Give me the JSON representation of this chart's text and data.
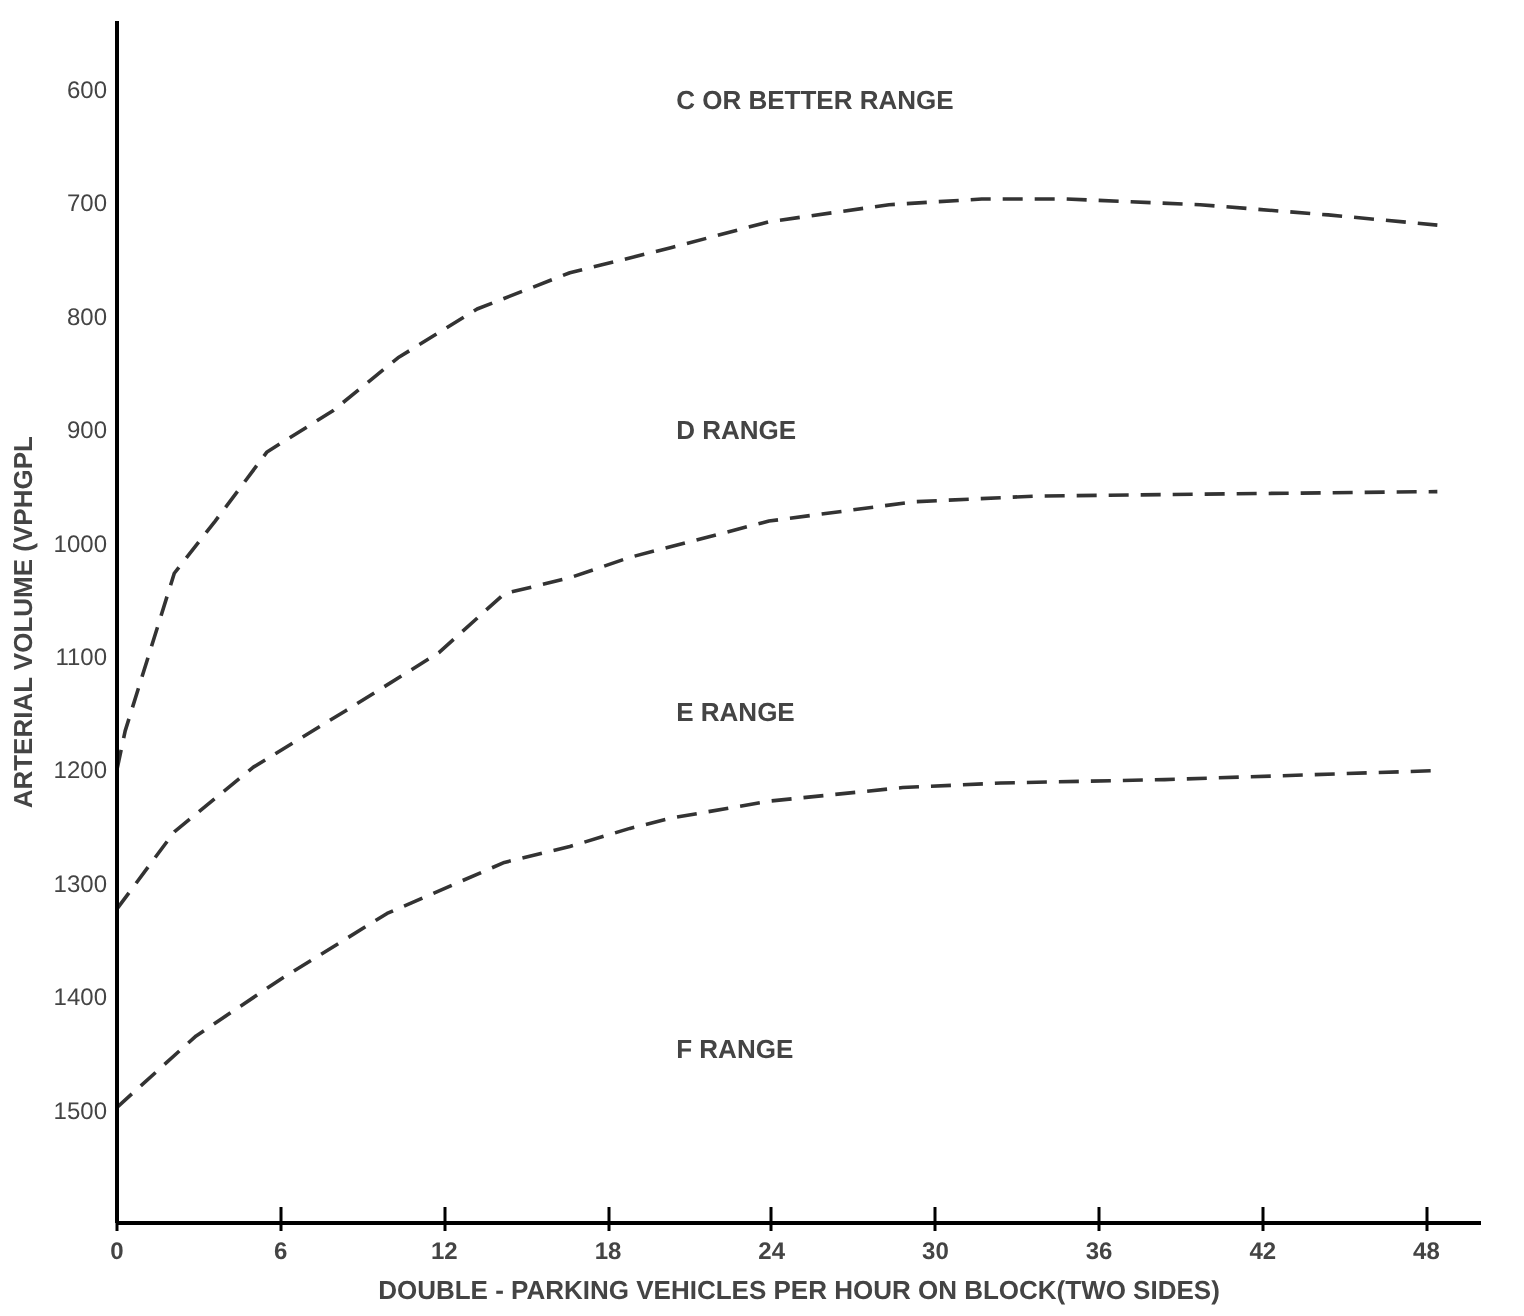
{
  "chart_data": {
    "type": "line",
    "xlabel": "DOUBLE - PARKING VEHICLES PER HOUR ON BLOCK(TWO SIDES)",
    "ylabel": "ARTERIAL VOLUME (VPHGPL",
    "xlim": [
      0,
      50
    ],
    "ylim": [
      1600,
      540
    ],
    "xticks": [
      0,
      6,
      12,
      18,
      24,
      30,
      36,
      42,
      48
    ],
    "yticks": [
      600,
      700,
      800,
      900,
      1000,
      1100,
      1200,
      1300,
      1400,
      1500
    ],
    "grid": false,
    "line_style": "dashed",
    "marker": "none",
    "series": [
      {
        "color": "#333333",
        "x": [
          0,
          0.3,
          2.1,
          3.6,
          5.5,
          7.9,
          10.3,
          13.2,
          16.6,
          20.3,
          23.9,
          28.3,
          31.7,
          34.8,
          39.7,
          44.4,
          48.4
        ],
        "values": [
          1200,
          1166,
          1027,
          981,
          920,
          884,
          837,
          794,
          762,
          740,
          717,
          702,
          697,
          697,
          702,
          711,
          720
        ]
      },
      {
        "color": "#333333",
        "x": [
          0,
          2.1,
          5.0,
          8.4,
          11.8,
          14.2,
          16.6,
          18.8,
          23.9,
          29.2,
          33.6,
          40.8,
          48.4
        ],
        "values": [
          1323,
          1255,
          1198,
          1148,
          1097,
          1045,
          1031,
          1013,
          981,
          964,
          959,
          957,
          955
        ]
      },
      {
        "color": "#333333",
        "x": [
          0,
          2.9,
          6,
          9.9,
          14.2,
          16.6,
          18.8,
          20.3,
          23.9,
          28.8,
          32.4,
          38.4,
          48.4
        ],
        "values": [
          1498,
          1435,
          1385,
          1327,
          1282,
          1268,
          1252,
          1243,
          1228,
          1216,
          1212,
          1209,
          1201
        ]
      }
    ],
    "annotations": [
      "C OR BETTER RANGE",
      "D RANGE",
      "E RANGE",
      "F RANGE"
    ]
  }
}
